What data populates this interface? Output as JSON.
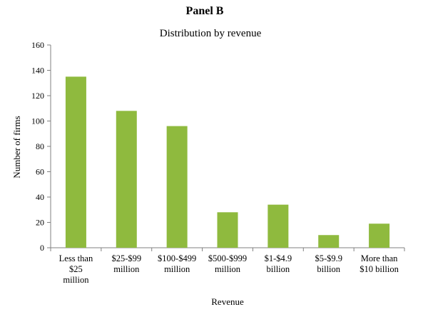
{
  "panel_title": "Panel B",
  "chart_data": {
    "type": "bar",
    "title": "Distribution by revenue",
    "xlabel": "Revenue",
    "ylabel": "Number of firms",
    "ylim": [
      0,
      160
    ],
    "yticks": [
      "0",
      "20",
      "40",
      "60",
      "80",
      "100",
      "120",
      "140",
      "160"
    ],
    "categories": [
      [
        "Less than",
        "$25",
        "million"
      ],
      [
        "$25-$99",
        "million"
      ],
      [
        "$100-$499",
        "million"
      ],
      [
        "$500-$999",
        "million"
      ],
      [
        "$1-$4.9",
        "billion"
      ],
      [
        "$5-$9.9",
        "billion"
      ],
      [
        "More than",
        "$10 billion"
      ]
    ],
    "values": [
      135,
      108,
      96,
      28,
      34,
      10,
      19
    ],
    "bar_color": "#8fba3e",
    "grid": false,
    "legend": "none"
  }
}
